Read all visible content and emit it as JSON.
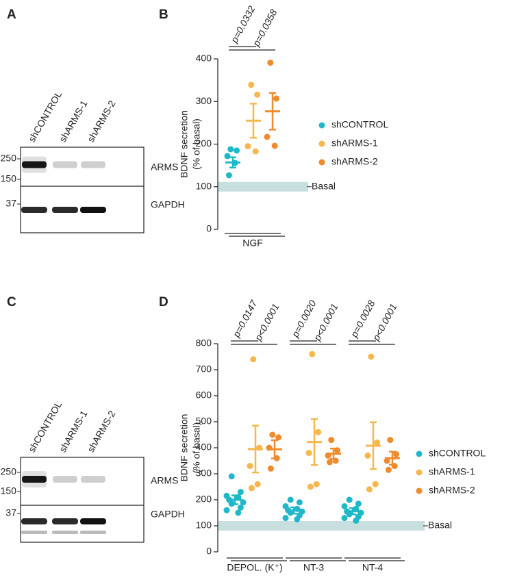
{
  "blots": [
    {
      "panel": "A",
      "lanes": [
        "shCONTROL",
        "shARMS-1",
        "shARMS-2"
      ],
      "markers": [
        250,
        150,
        37
      ],
      "proteins": [
        "ARMS",
        "GAPDH"
      ]
    },
    {
      "panel": "C",
      "lanes": [
        "shCONTROL",
        "shARMS-1",
        "shARMS-2"
      ],
      "markers": [
        250,
        150,
        37
      ],
      "proteins": [
        "ARMS",
        "GAPDH"
      ]
    }
  ],
  "chart_data": [
    {
      "type": "dotplot",
      "panel": "B",
      "y_label": [
        "BDNF secretion",
        "(% of basal)"
      ],
      "categories": [
        "NGF"
      ],
      "series": [
        {
          "name": "shCONTROL",
          "color": "#1fb8c9",
          "values": [
            157
          ],
          "errors": [
            12
          ],
          "points": [
            [
              188,
              185,
              172,
              156,
              127
            ]
          ]
        },
        {
          "name": "shARMS-1",
          "color": "#f6b74c",
          "values": [
            255
          ],
          "errors": [
            40
          ],
          "points": [
            [
              339,
              316,
              195,
              183
            ]
          ]
        },
        {
          "name": "shARMS-2",
          "color": "#ee8b2c",
          "values": [
            277
          ],
          "errors": [
            43
          ],
          "points": [
            [
              391,
              307,
              217,
              196
            ]
          ]
        }
      ],
      "ylim": [
        0,
        400
      ],
      "yticks": [
        0,
        100,
        200,
        300,
        400
      ],
      "reference": {
        "value": 100,
        "label": "Basal",
        "color": "#c8dfdf"
      },
      "comparisons": [
        [
          "p=0.0332",
          "p=0.0358"
        ]
      ]
    },
    {
      "type": "dotplot",
      "panel": "D",
      "y_label": [
        "BDNF secretion",
        "(% of basal)"
      ],
      "categories": [
        "DEPOL. (K⁺)",
        "NT-3",
        "NT-4"
      ],
      "series": [
        {
          "name": "shCONTROL",
          "color": "#1fb8c9",
          "values": [
            200,
            159,
            156
          ],
          "errors": [
            17,
            12,
            12
          ],
          "points": [
            [
              290,
              230,
              215,
              210,
              200,
              190,
              185,
              170,
              160,
              150
            ],
            [
              200,
              190,
              175,
              165,
              160,
              155,
              150,
              140,
              130,
              125
            ],
            [
              200,
              185,
              175,
              165,
              155,
              150,
              145,
              135,
              130,
              120
            ]
          ]
        },
        {
          "name": "shARMS-1",
          "color": "#f6b74c",
          "values": [
            395,
            422,
            408
          ],
          "errors": [
            90,
            88,
            90
          ],
          "points": [
            [
              740,
              400,
              330,
              260,
              245
            ],
            [
              760,
              460,
              380,
              260,
              250
            ],
            [
              750,
              420,
              370,
              260,
              240
            ]
          ]
        },
        {
          "name": "shARMS-2",
          "color": "#ee8b2c",
          "values": [
            394,
            377,
            360
          ],
          "errors": [
            35,
            20,
            25
          ],
          "points": [
            [
              450,
              440,
              400,
              360,
              320
            ],
            [
              430,
              390,
              370,
              350,
              345
            ],
            [
              430,
              375,
              350,
              330,
              315
            ]
          ]
        }
      ],
      "ylim": [
        0,
        800
      ],
      "yticks": [
        0,
        100,
        200,
        300,
        400,
        500,
        600,
        700,
        800
      ],
      "reference": {
        "value": 100,
        "label": "Basal",
        "color": "#c8dfdf"
      },
      "comparisons": [
        [
          "p=0.0147",
          "p<0.0001"
        ],
        [
          "p=0.0020",
          "p<0.0001"
        ],
        [
          "p=0.0028",
          "p<0.0001"
        ]
      ]
    }
  ]
}
